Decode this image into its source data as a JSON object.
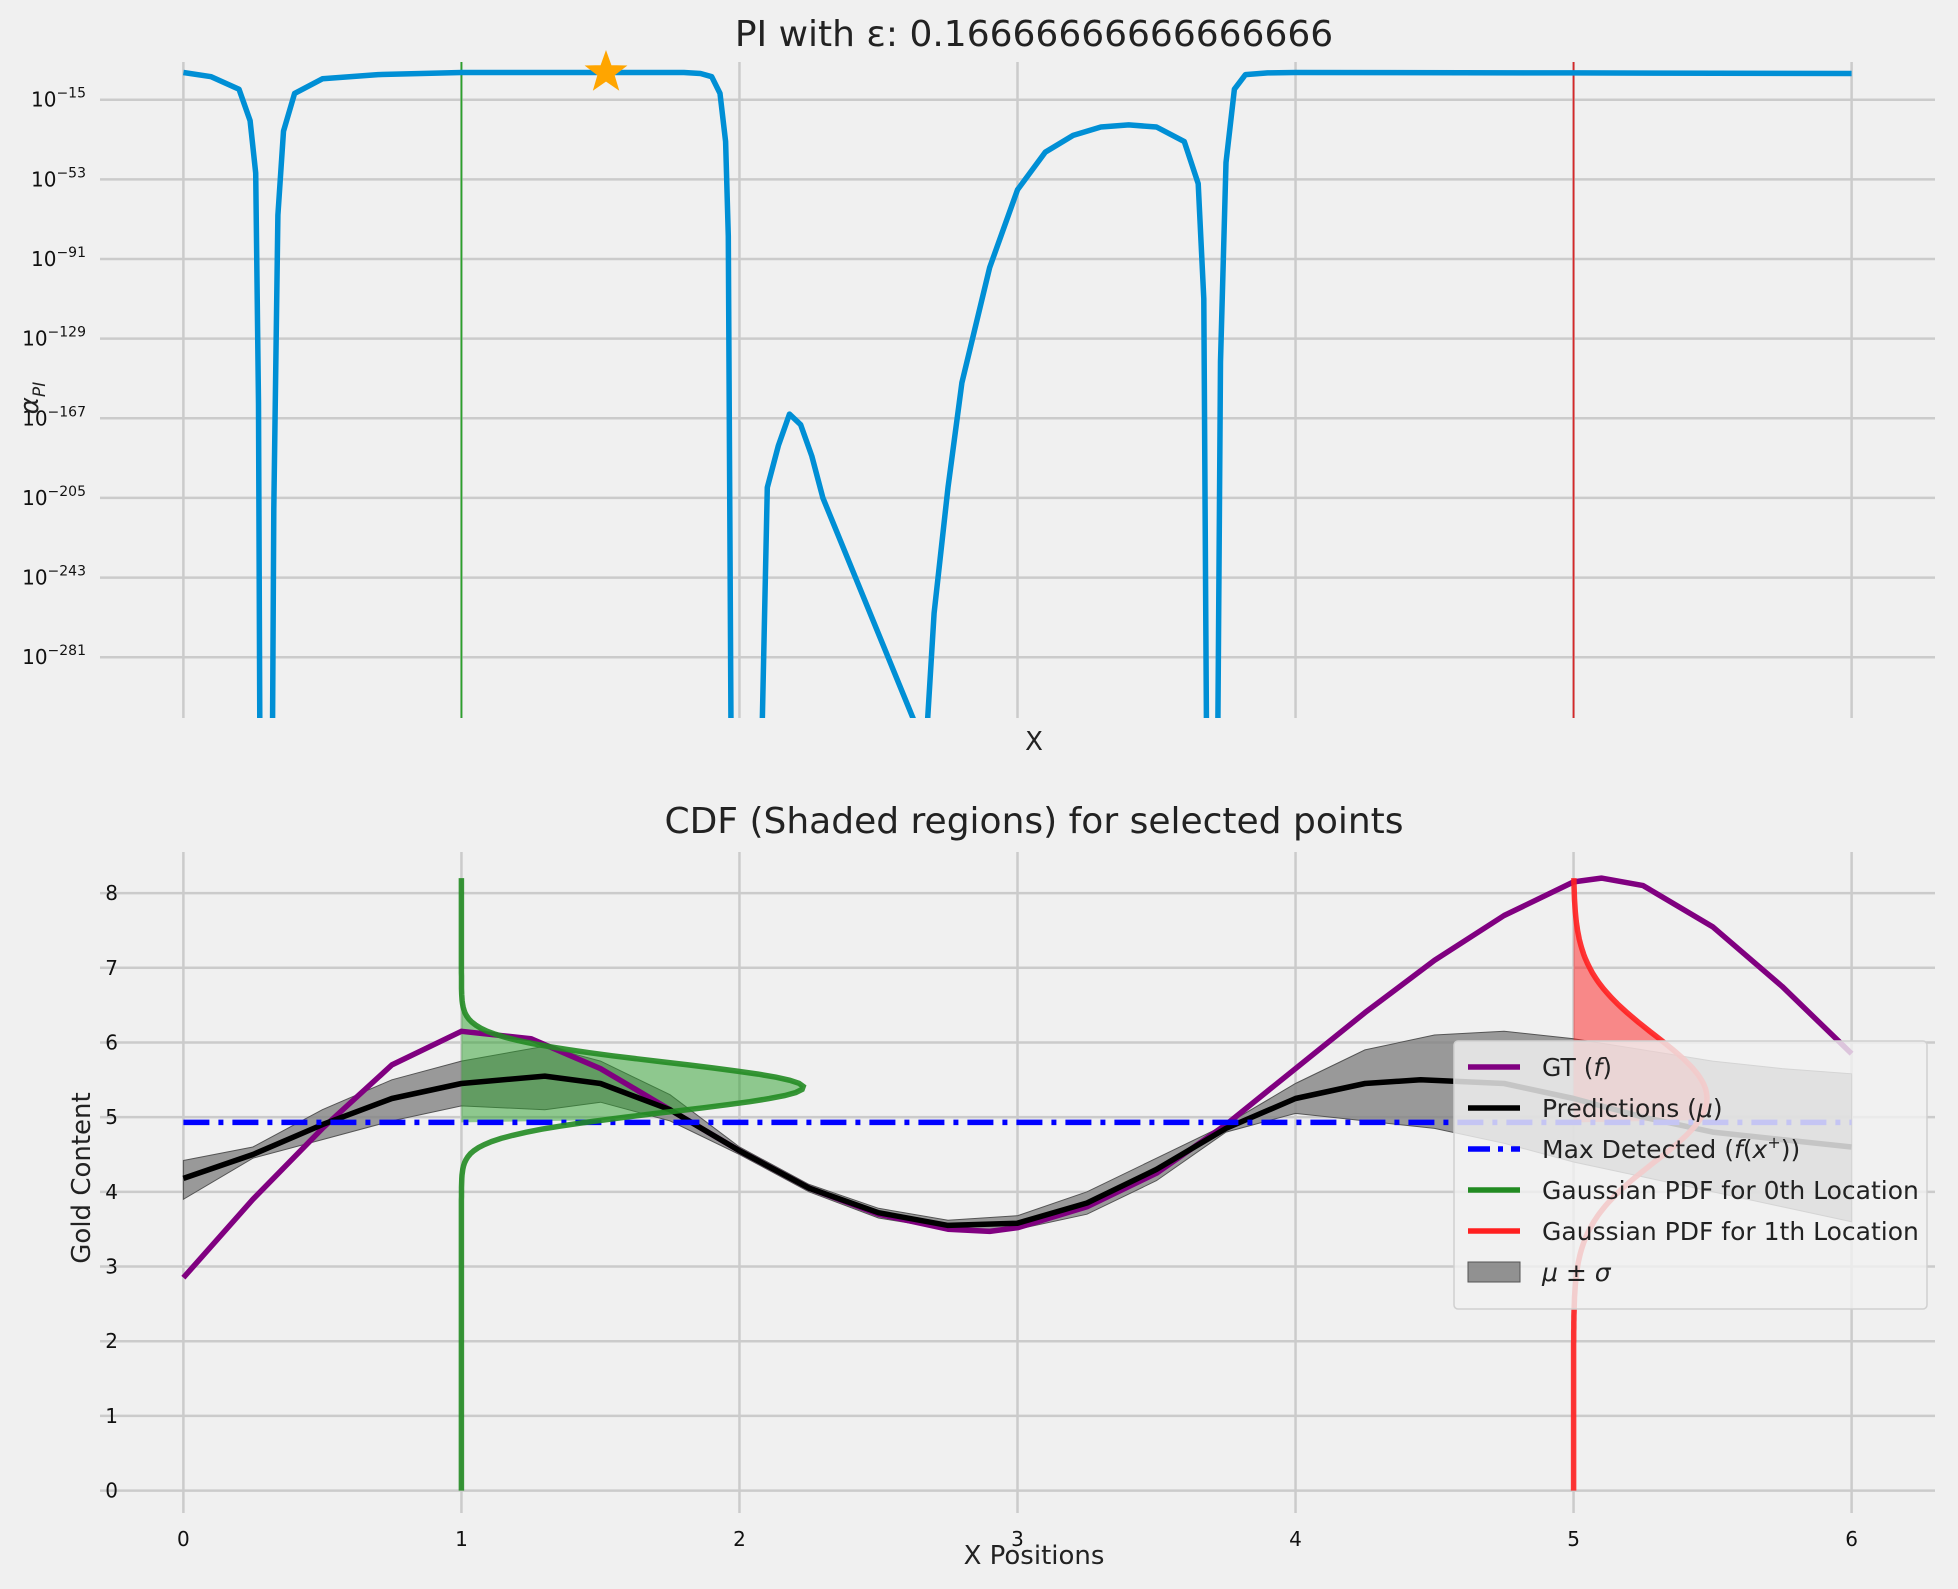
{
  "chart_data": [
    {
      "type": "line",
      "title": "PI with ε: 0.16666666666666666",
      "xlabel": "X",
      "ylabel": "α_PI",
      "yscale": "log",
      "xlim": [
        -0.3,
        6.3
      ],
      "ylim_log10": [
        -310,
        3
      ],
      "x_ticks": [
        0,
        1,
        2,
        3,
        4,
        5,
        6
      ],
      "x_tick_labels_visible": false,
      "y_ticks_log10": [
        -15,
        -53,
        -91,
        -129,
        -167,
        -205,
        -243,
        -281
      ],
      "y_tick_base": "10",
      "y_tick_exponents": [
        "−15",
        "−53",
        "−91",
        "−129",
        "−167",
        "−205",
        "−243",
        "−281"
      ],
      "grid": true,
      "series": [
        {
          "color": "#008fd5",
          "note_type": "log10 values",
          "x": [
            0.0,
            0.1,
            0.2,
            0.24,
            0.26,
            0.27,
            0.275,
            0.32,
            0.325,
            0.34,
            0.36,
            0.4,
            0.5,
            0.7,
            1.0,
            1.3,
            1.6,
            1.8,
            1.86,
            1.9,
            1.93,
            1.95,
            1.96,
            1.97,
            2.08,
            2.1,
            2.14,
            2.18,
            2.22,
            2.26,
            2.3,
            2.67,
            2.7,
            2.75,
            2.8,
            2.9,
            3.0,
            3.1,
            3.2,
            3.3,
            3.4,
            3.5,
            3.6,
            3.65,
            3.67,
            3.68,
            3.72,
            3.73,
            3.75,
            3.78,
            3.82,
            3.9,
            4.0,
            5.0,
            6.0
          ],
          "y": [
            -2,
            -4,
            -10,
            -25,
            -50,
            -160,
            -330,
            -330,
            -210,
            -70,
            -30,
            -12,
            -5,
            -3,
            -2,
            -2,
            -2,
            -2,
            -2.5,
            -4,
            -12,
            -35,
            -80,
            -330,
            -330,
            -200,
            -180,
            -165,
            -170,
            -185,
            -205,
            -330,
            -260,
            -200,
            -150,
            -95,
            -58,
            -40,
            -32,
            -28,
            -27,
            -28,
            -35,
            -55,
            -110,
            -330,
            -330,
            -140,
            -45,
            -10,
            -3,
            -2.2,
            -2,
            -2.2,
            -2.5
          ]
        }
      ],
      "vertical_lines": [
        {
          "x": 1,
          "color": "#2ca02c"
        },
        {
          "x": 5,
          "color": "#d62728"
        }
      ],
      "marker": {
        "shape": "star",
        "x": 1.52,
        "y_log10": -2,
        "color": "#ffa500"
      }
    },
    {
      "type": "line",
      "title": "CDF (Shaded regions) for selected points",
      "xlabel": "X Positions",
      "ylabel": "Gold Content",
      "xlim": [
        -0.3,
        6.3
      ],
      "ylim": [
        -0.3,
        8.55
      ],
      "x_ticks": [
        0,
        1,
        2,
        3,
        4,
        5,
        6
      ],
      "y_ticks": [
        0,
        1,
        2,
        3,
        4,
        5,
        6,
        7,
        8
      ],
      "grid": true,
      "legend_position": "right",
      "series": [
        {
          "name": "GT (f)",
          "color": "#800080",
          "x": [
            0.0,
            0.25,
            0.5,
            0.75,
            1.0,
            1.25,
            1.5,
            1.75,
            2.0,
            2.25,
            2.5,
            2.75,
            2.9,
            3.0,
            3.25,
            3.5,
            3.75,
            4.0,
            4.25,
            4.5,
            4.75,
            5.0,
            5.1,
            5.25,
            5.5,
            5.75,
            6.0
          ],
          "y": [
            2.85,
            3.9,
            4.85,
            5.7,
            6.15,
            6.05,
            5.65,
            5.1,
            4.55,
            4.05,
            3.7,
            3.5,
            3.47,
            3.52,
            3.8,
            4.25,
            4.9,
            5.65,
            6.4,
            7.1,
            7.7,
            8.15,
            8.2,
            8.1,
            7.55,
            6.75,
            5.85
          ]
        },
        {
          "name": "Predictions (μ)",
          "color": "#000000",
          "x": [
            0.0,
            0.25,
            0.5,
            0.75,
            1.0,
            1.3,
            1.5,
            1.75,
            2.0,
            2.25,
            2.5,
            2.75,
            3.0,
            3.25,
            3.5,
            3.75,
            4.0,
            4.25,
            4.45,
            4.75,
            5.0,
            5.25,
            5.5,
            5.75,
            6.0
          ],
          "y": [
            4.18,
            4.5,
            4.9,
            5.25,
            5.45,
            5.55,
            5.45,
            5.1,
            4.55,
            4.05,
            3.72,
            3.55,
            3.58,
            3.85,
            4.3,
            4.85,
            5.25,
            5.45,
            5.5,
            5.45,
            5.25,
            5.0,
            4.8,
            4.7,
            4.6
          ]
        },
        {
          "name": "Max Detected (f(x⁺))",
          "color": "#0000ff",
          "style": "dashdot",
          "constant_y": 4.93
        },
        {
          "name": "Gaussian PDF for 0th Location",
          "color": "#228b22",
          "anchor_x": 1,
          "mean": 5.4,
          "sigma": 0.33,
          "peak_x": 2.23,
          "y_range": [
            0,
            8.2
          ]
        },
        {
          "name": "Gaussian PDF for 1th Location",
          "color": "#ff2020",
          "anchor_x": 5,
          "mean": 5.25,
          "sigma": 0.85,
          "peak_x": 5.48,
          "y_range": [
            0,
            8.2
          ]
        },
        {
          "name": "μ ± σ",
          "color": "#808080",
          "style": "band",
          "x": [
            0.0,
            0.25,
            0.5,
            0.75,
            1.0,
            1.3,
            1.5,
            1.75,
            2.0,
            2.25,
            2.5,
            2.75,
            3.0,
            3.25,
            3.5,
            3.75,
            4.0,
            4.25,
            4.5,
            4.75,
            5.0,
            5.25,
            5.5,
            5.75,
            6.0
          ],
          "lower": [
            3.9,
            4.45,
            4.7,
            4.95,
            5.15,
            5.1,
            5.2,
            4.95,
            4.5,
            4.0,
            3.65,
            3.5,
            3.5,
            3.7,
            4.15,
            4.8,
            5.05,
            4.95,
            4.85,
            4.65,
            4.4,
            4.2,
            4.0,
            3.8,
            3.6
          ],
          "upper": [
            4.42,
            4.6,
            5.1,
            5.5,
            5.75,
            5.95,
            5.75,
            5.3,
            4.6,
            4.1,
            3.78,
            3.62,
            3.68,
            4.0,
            4.45,
            4.9,
            5.45,
            5.9,
            6.1,
            6.15,
            6.05,
            5.9,
            5.75,
            5.65,
            5.58
          ]
        }
      ],
      "cdf_regions": [
        {
          "anchor_x": 1,
          "color": "#2ca02c",
          "threshold": 4.93
        },
        {
          "anchor_x": 5,
          "color": "#ff2020",
          "threshold": 4.93
        }
      ]
    }
  ]
}
